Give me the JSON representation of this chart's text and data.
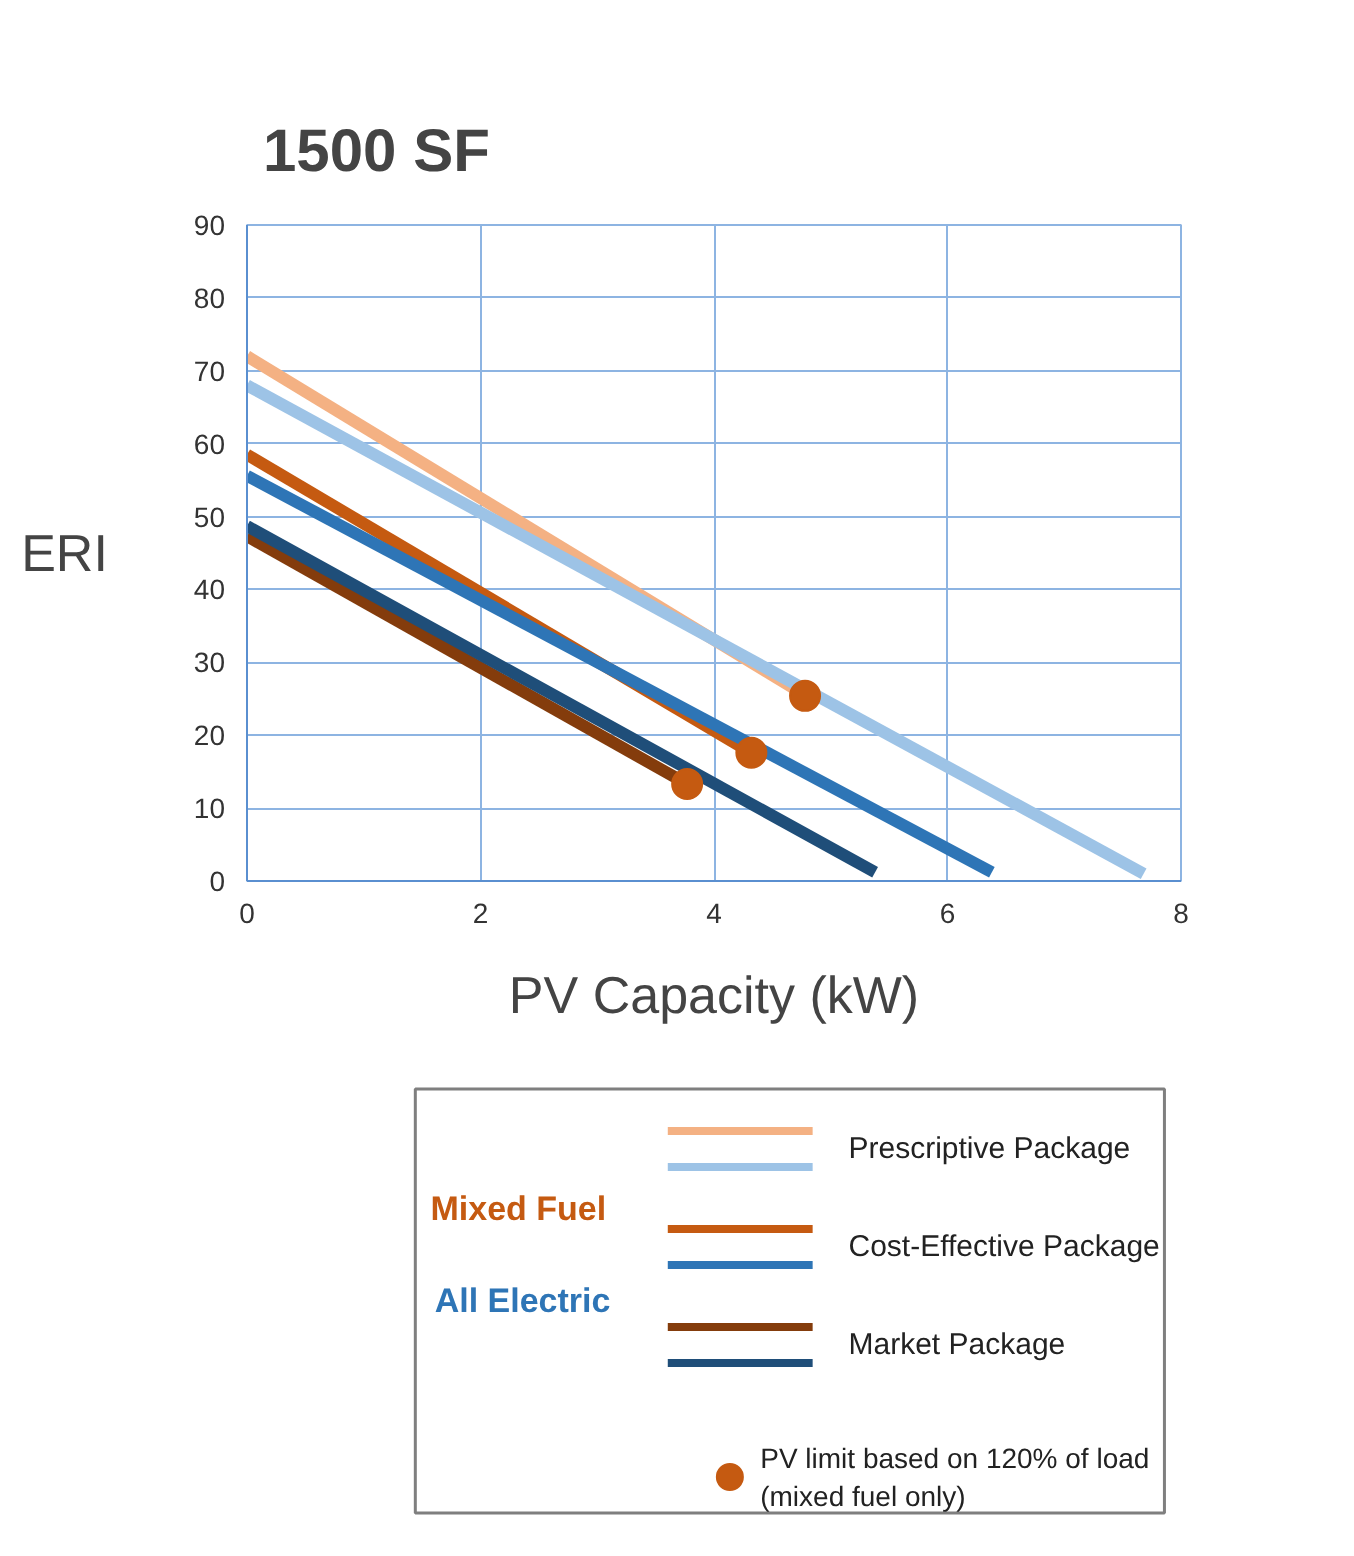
{
  "chart_data": {
    "type": "line",
    "title": "1500 SF",
    "xlabel": "PV Capacity (kW)",
    "ylabel": "ERI",
    "xlim": [
      0,
      8
    ],
    "ylim": [
      0,
      90
    ],
    "xticks": [
      0,
      2,
      4,
      6,
      8
    ],
    "yticks": [
      0,
      10,
      20,
      30,
      40,
      50,
      60,
      70,
      80,
      90
    ],
    "grid": true,
    "legend": "bottom",
    "marker": "none",
    "line_style": "solid",
    "annotations": [
      "Mixed Fuel",
      "All Electric"
    ],
    "series": [
      {
        "name": "Prescriptive Package",
        "color": "#f4b183",
        "x": [
          0,
          4.78
        ],
        "values": [
          72,
          25.5
        ]
      },
      {
        "color": "#9dc3e6",
        "x": [
          0,
          7.68
        ],
        "values": [
          68,
          1
        ]
      },
      {
        "name": "Cost-Effective Package",
        "color": "#c55a11",
        "x": [
          0,
          4.32
        ],
        "values": [
          58.5,
          17.6
        ]
      },
      {
        "color": "#2e75b6",
        "x": [
          0,
          6.38
        ],
        "values": [
          55.6,
          1.2
        ]
      },
      {
        "name": "Market Package",
        "color": "#843c0c",
        "x": [
          0,
          3.77
        ],
        "values": [
          47.3,
          13.3
        ]
      },
      {
        "color": "#1f4e79",
        "x": [
          0,
          5.38
        ],
        "values": [
          48.7,
          1.2
        ]
      },
      {
        "name": "PV limit based on 120% of load\n(mixed fuel only)",
        "type": "scatter",
        "marker": "circle",
        "color": "#c55a11",
        "x": [
          4.78,
          4.32,
          3.77
        ],
        "values": [
          25.4,
          17.6,
          13.3
        ]
      }
    ]
  }
}
